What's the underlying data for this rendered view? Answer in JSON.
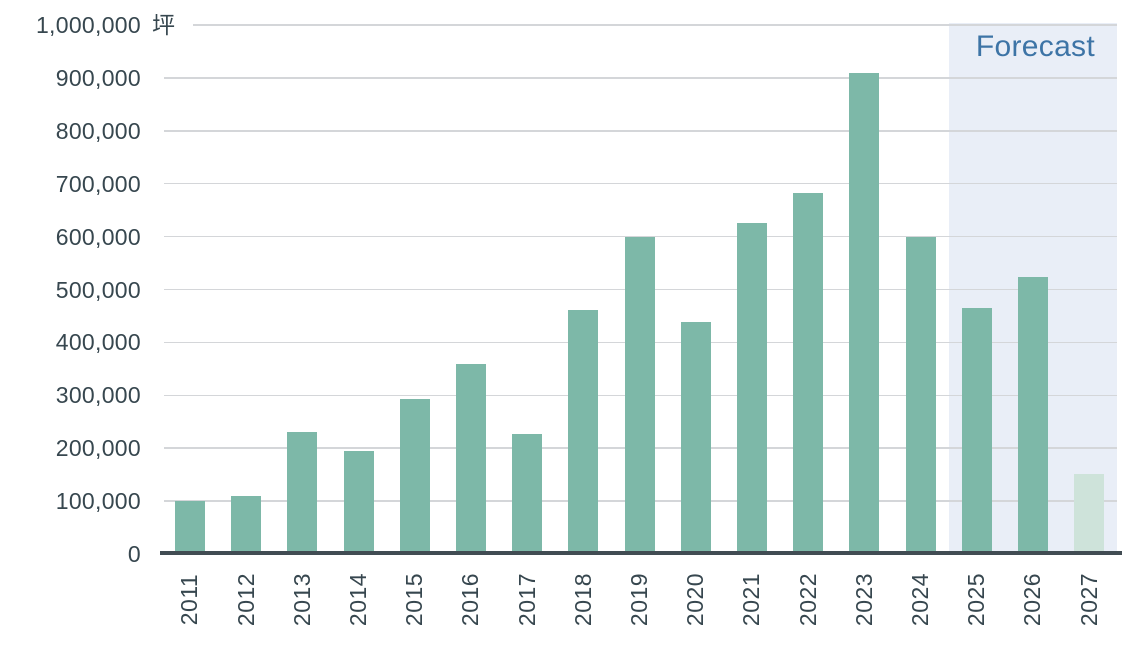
{
  "chart_data": {
    "type": "bar",
    "title": "",
    "unit": "坪",
    "categories": [
      "2011",
      "2012",
      "2013",
      "2014",
      "2015",
      "2016",
      "2017",
      "2018",
      "2019",
      "2020",
      "2021",
      "2022",
      "2023",
      "2024",
      "2025",
      "2026",
      "2027"
    ],
    "values": [
      100000,
      110000,
      231000,
      194000,
      293000,
      359000,
      227000,
      461000,
      600000,
      439000,
      626000,
      682000,
      910000,
      600000,
      465000,
      524000,
      151000
    ],
    "ylim": [
      0,
      1000000
    ],
    "ytick_interval": 100000,
    "ytick_labels": [
      "0",
      "100,000",
      "200,000",
      "300,000",
      "400,000",
      "500,000",
      "600,000",
      "700,000",
      "800,000",
      "900,000",
      "1,000,000"
    ],
    "grid": true,
    "legend_position": "none",
    "forecast": {
      "label": "Forecast",
      "categories": [
        "2025",
        "2026",
        "2027"
      ]
    },
    "pale_categories": [
      "2027"
    ],
    "colors": {
      "bar": "#7db8a8",
      "bar_pale": "#cee3da",
      "forecast_bg": "#e9eef7",
      "forecast_text": "#3d74a6",
      "axis_text": "#37474f",
      "gridline": "#d4d6d9",
      "axis_line": "#414c53"
    }
  }
}
